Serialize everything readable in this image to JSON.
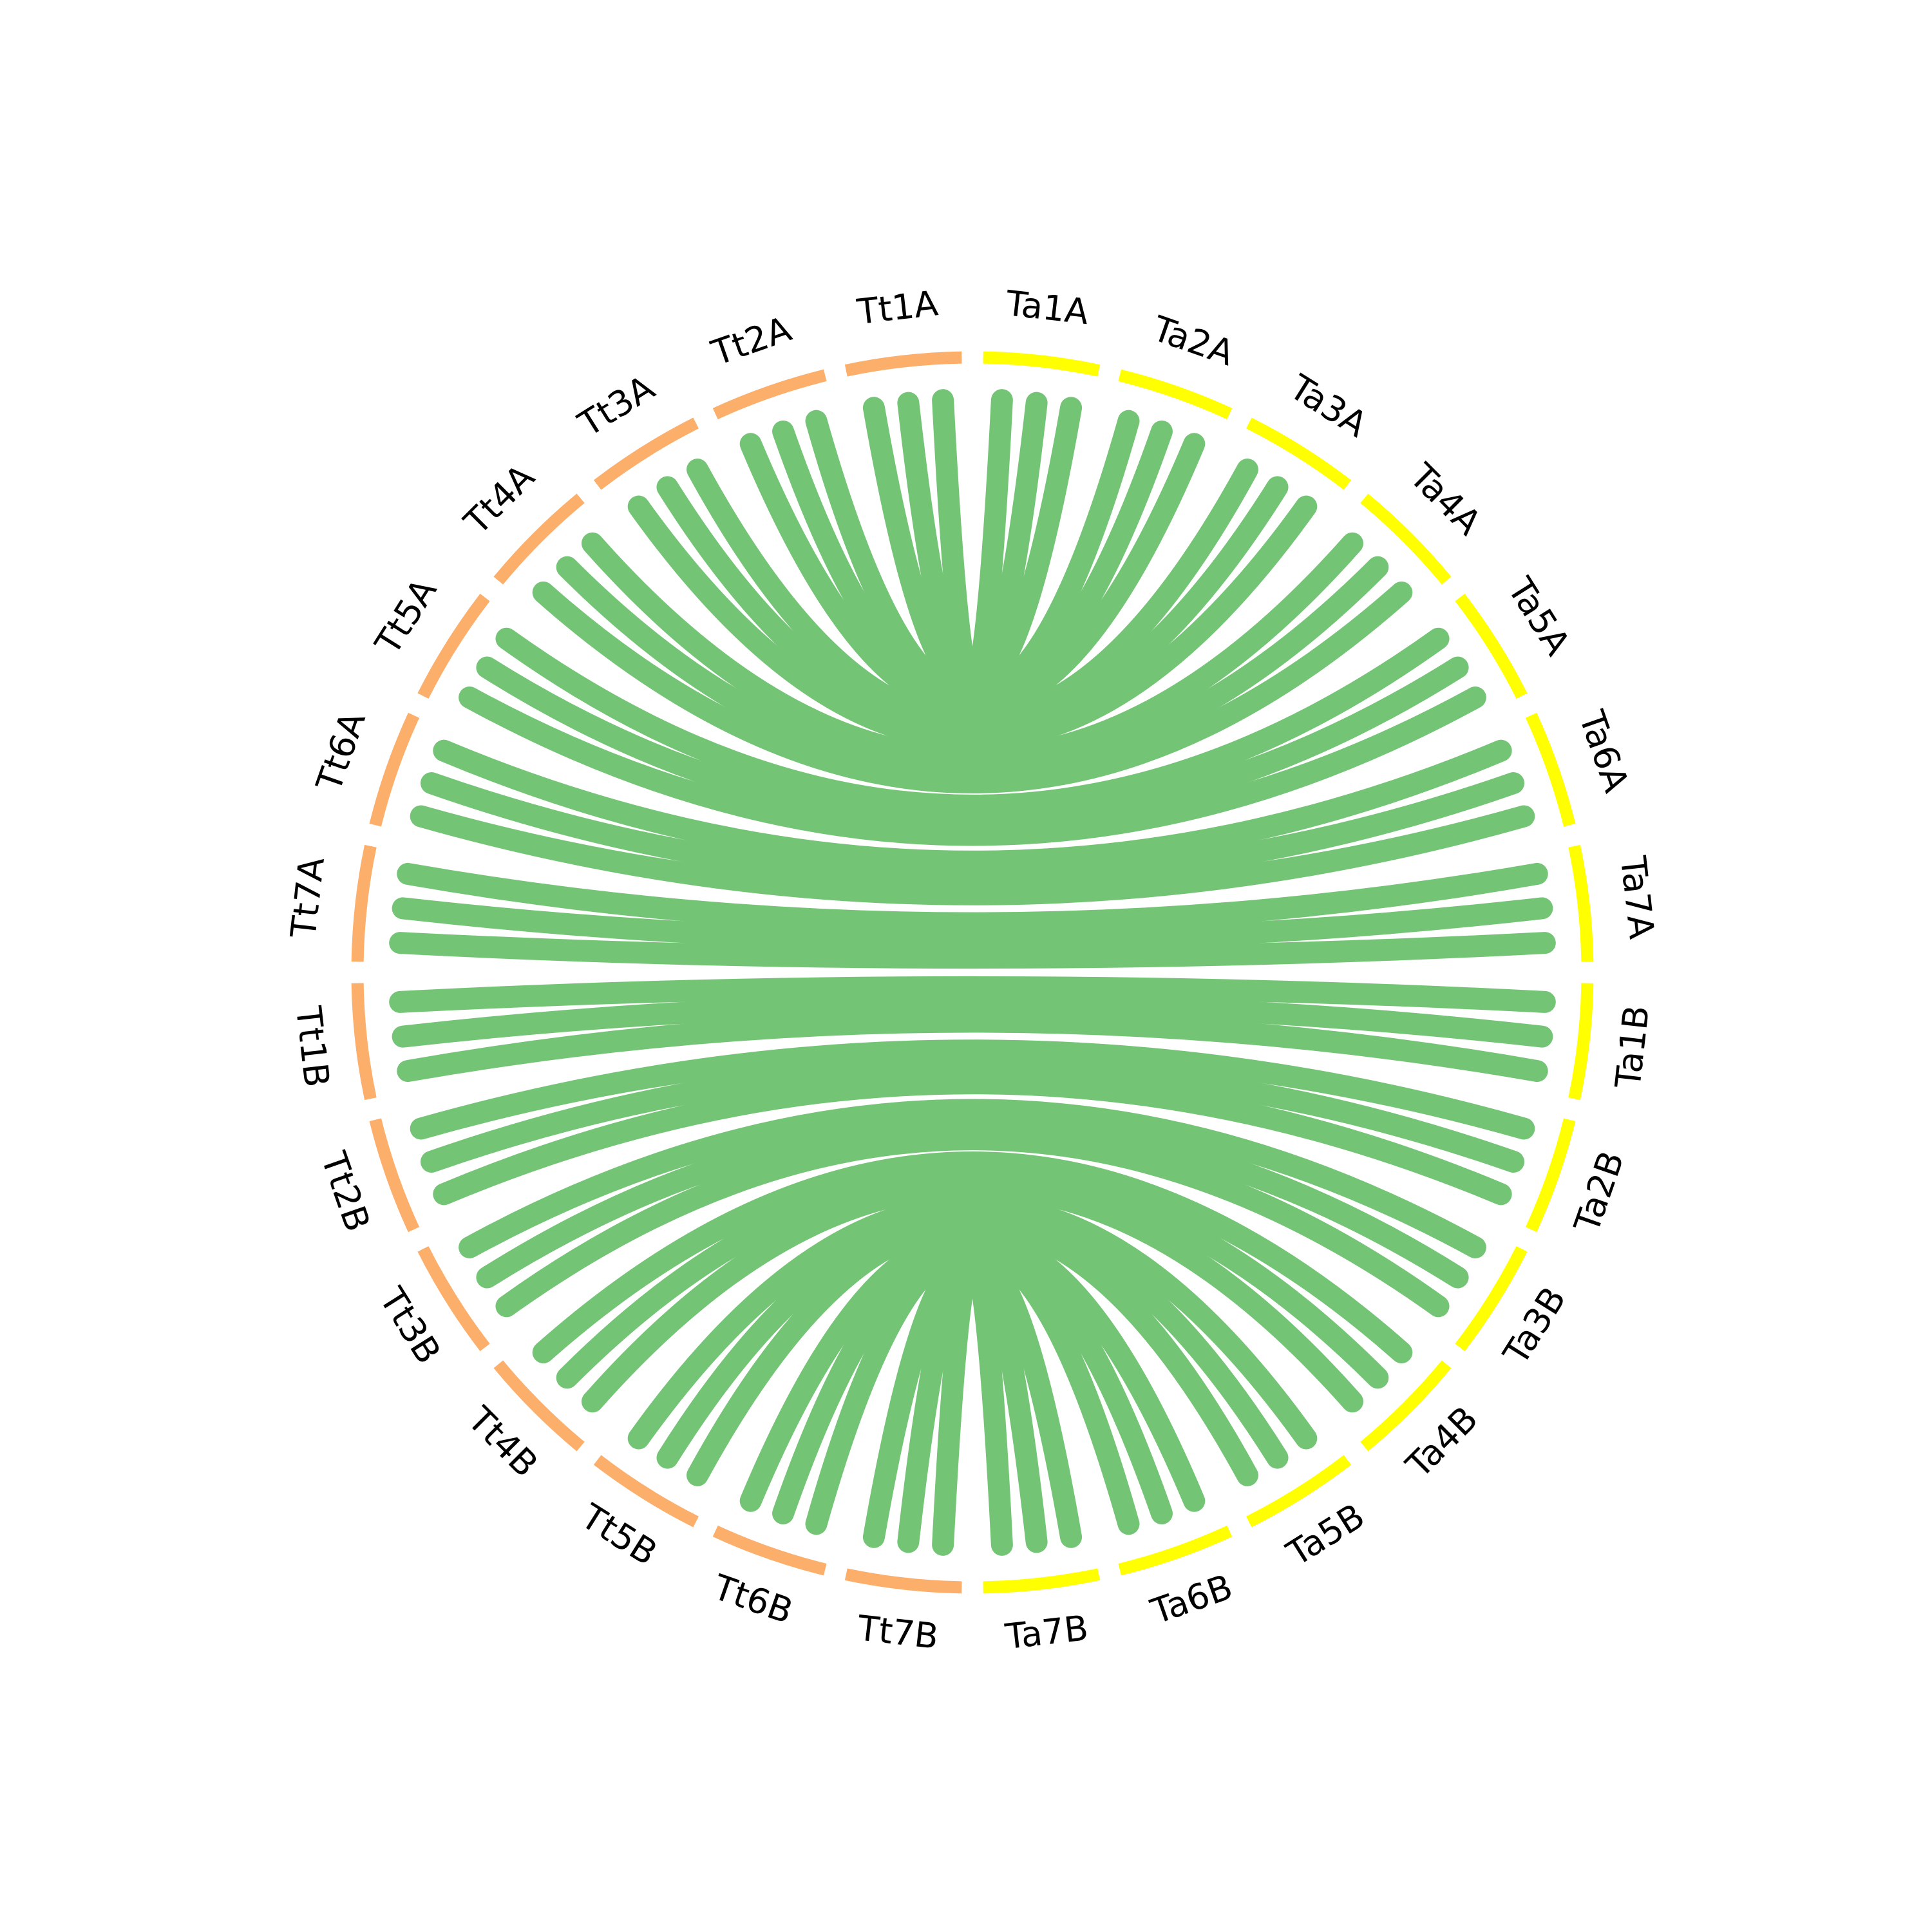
{
  "nodes": [
    {
      "label": "Ta1A",
      "color": "#ffff00"
    },
    {
      "label": "Ta2A",
      "color": "#ffff00"
    },
    {
      "label": "Ta3A",
      "color": "#ffff00"
    },
    {
      "label": "Ta4A",
      "color": "#ffff00"
    },
    {
      "label": "Ta5A",
      "color": "#ffff00"
    },
    {
      "label": "Ta6A",
      "color": "#ffff00"
    },
    {
      "label": "Ta7A",
      "color": "#ffff00"
    },
    {
      "label": "Ta1B",
      "color": "#ffff00"
    },
    {
      "label": "Ta2B",
      "color": "#ffff00"
    },
    {
      "label": "Ta3B",
      "color": "#ffff00"
    },
    {
      "label": "Ta4B",
      "color": "#ffff00"
    },
    {
      "label": "Ta5B",
      "color": "#ffff00"
    },
    {
      "label": "Ta6B",
      "color": "#ffff00"
    },
    {
      "label": "Ta7B",
      "color": "#ffff00"
    },
    {
      "label": "Tt7B",
      "color": "#fcae6b"
    },
    {
      "label": "Tt6B",
      "color": "#fcae6b"
    },
    {
      "label": "Tt5B",
      "color": "#fcae6b"
    },
    {
      "label": "Tt4B",
      "color": "#fcae6b"
    },
    {
      "label": "Tt3B",
      "color": "#fcae6b"
    },
    {
      "label": "Tt2B",
      "color": "#fcae6b"
    },
    {
      "label": "Tt1B",
      "color": "#fcae6b"
    },
    {
      "label": "Tt7A",
      "color": "#fcae6b"
    },
    {
      "label": "Tt6A",
      "color": "#fcae6b"
    },
    {
      "label": "Tt5A",
      "color": "#fcae6b"
    },
    {
      "label": "Tt4A",
      "color": "#fcae6b"
    },
    {
      "label": "Tt3A",
      "color": "#fcae6b"
    },
    {
      "label": "Tt2A",
      "color": "#fcae6b"
    },
    {
      "label": "Tt1A",
      "color": "#fcae6b"
    }
  ],
  "link_color": "#74c476"
}
